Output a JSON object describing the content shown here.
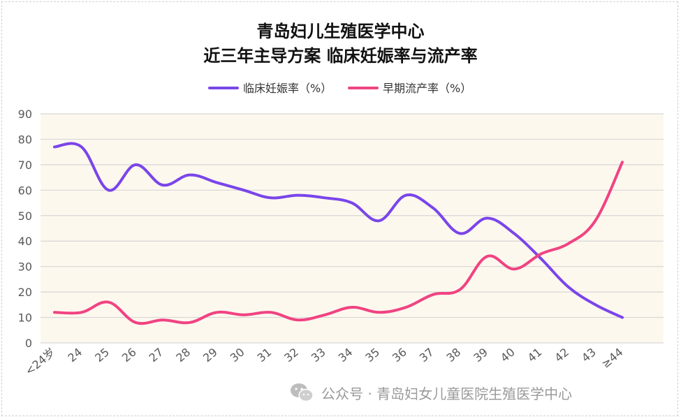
{
  "chart_data": {
    "type": "line",
    "title": "青岛妇儿生殖医学中心",
    "subtitle": "近三年主导方案 临床妊娠率与流产率",
    "categories": [
      "<24岁",
      "24",
      "25",
      "26",
      "27",
      "28",
      "29",
      "30",
      "31",
      "32",
      "33",
      "34",
      "35",
      "36",
      "37",
      "38",
      "39",
      "40",
      "41",
      "42",
      "43",
      "≥44"
    ],
    "series": [
      {
        "name": "临床妊娠率（%）",
        "color": "#7a45ea",
        "values": [
          77,
          77,
          60,
          70,
          62,
          66,
          63,
          60,
          57,
          58,
          57,
          55,
          48,
          58,
          53,
          43,
          49,
          43,
          33,
          22,
          15,
          10
        ]
      },
      {
        "name": "早期流产率（%）",
        "color": "#f04382",
        "values": [
          12,
          12,
          16,
          8,
          9,
          8,
          12,
          11,
          12,
          9,
          11,
          14,
          12,
          14,
          19,
          21,
          34,
          29,
          35,
          39,
          48,
          71
        ]
      }
    ],
    "ylim": [
      0,
      90
    ],
    "yticks": [
      0,
      10,
      20,
      30,
      40,
      50,
      60,
      70,
      80,
      90
    ],
    "grid": true,
    "legend": "top",
    "plot_background": "#fdf8ee"
  },
  "watermark": {
    "icon": "wechat-icon",
    "text": "公众号 · 青岛妇女儿童医院生殖医学中心"
  }
}
